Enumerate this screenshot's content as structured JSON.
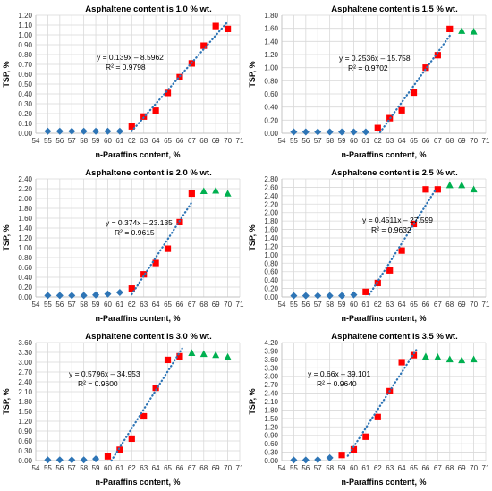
{
  "colors": {
    "group1": "#2e75b6",
    "group2": "#ff0000",
    "group3": "#00b050",
    "trendline": "#2e75b6",
    "grid": "#d9d9d9"
  },
  "chart_data": [
    {
      "type": "scatter",
      "title": "Asphaltene content is 1.0 % wt.",
      "xlabel": "n-Paraffins content, %",
      "ylabel": "TSP, %",
      "xlim": [
        54,
        71
      ],
      "ylim": [
        0,
        1.2
      ],
      "xticks": [
        54,
        55,
        56,
        57,
        58,
        59,
        60,
        61,
        62,
        63,
        64,
        65,
        66,
        67,
        68,
        69,
        70,
        71
      ],
      "yticks": [
        "0.00",
        "0.10",
        "0.20",
        "0.30",
        "0.40",
        "0.50",
        "0.60",
        "0.70",
        "0.80",
        "0.90",
        "1.00",
        "1.10",
        "1.20"
      ],
      "grid": true,
      "legend": "none",
      "series": [
        {
          "marker": "diamond",
          "color": "#2e75b6",
          "x": [
            55,
            56,
            57,
            58,
            59,
            60,
            61
          ],
          "y": [
            0.02,
            0.02,
            0.02,
            0.02,
            0.02,
            0.02,
            0.02
          ]
        },
        {
          "marker": "square",
          "color": "#ff0000",
          "x": [
            62,
            63,
            64,
            65,
            66,
            67,
            68,
            69,
            70
          ],
          "y": [
            0.07,
            0.17,
            0.23,
            0.41,
            0.57,
            0.71,
            0.89,
            1.09,
            1.06
          ]
        }
      ],
      "trendline": {
        "slope": 0.139,
        "intercept": -8.5962,
        "x": [
          62,
          70
        ],
        "equation": "y = 0.139x – 8.5962",
        "r2": "R² = 0.9798"
      }
    },
    {
      "type": "scatter",
      "title": "Asphaltene content is 1.5 % wt.",
      "xlabel": "n-Paraffins content, %",
      "ylabel": "TSP, %",
      "xlim": [
        54,
        71
      ],
      "ylim": [
        0,
        1.8
      ],
      "xticks": [
        54,
        55,
        56,
        57,
        58,
        59,
        60,
        61,
        62,
        63,
        64,
        65,
        66,
        67,
        68,
        69,
        70,
        71
      ],
      "yticks": [
        "0.00",
        "0.20",
        "0.40",
        "0.60",
        "0.80",
        "1.00",
        "1.20",
        "1.40",
        "1.60",
        "1.80"
      ],
      "grid": true,
      "legend": "none",
      "series": [
        {
          "marker": "diamond",
          "color": "#2e75b6",
          "x": [
            55,
            56,
            57,
            58,
            59,
            60,
            61
          ],
          "y": [
            0.02,
            0.02,
            0.02,
            0.02,
            0.02,
            0.02,
            0.02
          ]
        },
        {
          "marker": "square",
          "color": "#ff0000",
          "x": [
            62,
            63,
            64,
            65,
            66,
            67,
            68
          ],
          "y": [
            0.08,
            0.23,
            0.35,
            0.62,
            1.0,
            1.19,
            1.59
          ]
        },
        {
          "marker": "triangle",
          "color": "#00b050",
          "x": [
            69,
            70
          ],
          "y": [
            1.56,
            1.55
          ]
        }
      ],
      "trendline": {
        "slope": 0.2536,
        "intercept": -15.758,
        "x": [
          62.2,
          68
        ],
        "equation": "y = 0.2536x – 15.758",
        "r2": "R² = 0.9702"
      }
    },
    {
      "type": "scatter",
      "title": "Asphaltene content is 2.0 % wt.",
      "xlabel": "n-Paraffins content, %",
      "ylabel": "TSP, %",
      "xlim": [
        54,
        71
      ],
      "ylim": [
        0,
        2.4
      ],
      "xticks": [
        54,
        55,
        56,
        57,
        58,
        59,
        60,
        61,
        62,
        63,
        64,
        65,
        66,
        67,
        68,
        69,
        70,
        71
      ],
      "yticks": [
        "0.00",
        "0.20",
        "0.40",
        "0.60",
        "0.80",
        "1.00",
        "1.20",
        "1.40",
        "1.60",
        "1.80",
        "2.00",
        "2.20",
        "2.40"
      ],
      "grid": true,
      "legend": "none",
      "series": [
        {
          "marker": "diamond",
          "color": "#2e75b6",
          "x": [
            55,
            56,
            57,
            58,
            59,
            60,
            61
          ],
          "y": [
            0.03,
            0.03,
            0.03,
            0.03,
            0.04,
            0.06,
            0.09
          ]
        },
        {
          "marker": "square",
          "color": "#ff0000",
          "x": [
            62,
            63,
            64,
            65,
            66,
            67
          ],
          "y": [
            0.17,
            0.46,
            0.69,
            0.98,
            1.52,
            2.1
          ]
        },
        {
          "marker": "triangle",
          "color": "#00b050",
          "x": [
            68,
            69,
            70
          ],
          "y": [
            2.15,
            2.16,
            2.1
          ]
        }
      ],
      "trendline": {
        "slope": 0.374,
        "intercept": -23.135,
        "x": [
          62,
          67
        ],
        "equation": "y = 0.374x – 23.135",
        "r2": "R² = 0.9615"
      }
    },
    {
      "type": "scatter",
      "title": "Asphaltene content is 2.5 % wt.",
      "xlabel": "n-Paraffins content, %",
      "ylabel": "TSP, %",
      "xlim": [
        54,
        71
      ],
      "ylim": [
        0,
        2.8
      ],
      "xticks": [
        54,
        55,
        56,
        57,
        58,
        59,
        60,
        61,
        62,
        63,
        64,
        65,
        66,
        67,
        68,
        69,
        70,
        71
      ],
      "yticks": [
        "0.00",
        "0.20",
        "0.40",
        "0.60",
        "0.80",
        "1.00",
        "1.20",
        "1.40",
        "1.60",
        "1.80",
        "2.00",
        "2.20",
        "2.40",
        "2.60",
        "2.80"
      ],
      "grid": true,
      "legend": "none",
      "series": [
        {
          "marker": "diamond",
          "color": "#2e75b6",
          "x": [
            55,
            56,
            57,
            58,
            59,
            60
          ],
          "y": [
            0.03,
            0.03,
            0.03,
            0.03,
            0.03,
            0.05
          ]
        },
        {
          "marker": "square",
          "color": "#ff0000",
          "x": [
            61,
            62,
            63,
            64,
            65,
            66,
            67
          ],
          "y": [
            0.12,
            0.33,
            0.63,
            1.1,
            1.73,
            2.55,
            2.55
          ]
        },
        {
          "marker": "triangle",
          "color": "#00b050",
          "x": [
            68,
            69,
            70
          ],
          "y": [
            2.65,
            2.65,
            2.55
          ]
        }
      ],
      "trendline": {
        "slope": 0.4511,
        "intercept": -27.599,
        "x": [
          61.3,
          66.8
        ],
        "equation": "y = 0.4511x – 27.599",
        "r2": "R² = 0.9632"
      }
    },
    {
      "type": "scatter",
      "title": "Asphaltene content is 3.0 % wt.",
      "xlabel": "n-Paraffins content, %",
      "ylabel": "TSP, %",
      "xlim": [
        54,
        71
      ],
      "ylim": [
        0,
        3.6
      ],
      "xticks": [
        54,
        55,
        56,
        57,
        58,
        59,
        60,
        61,
        62,
        63,
        64,
        65,
        66,
        67,
        68,
        69,
        70,
        71
      ],
      "yticks": [
        "0.00",
        "0.30",
        "0.60",
        "0.90",
        "1.20",
        "1.50",
        "1.80",
        "2.10",
        "2.40",
        "2.70",
        "3.00",
        "3.30",
        "3.60"
      ],
      "grid": true,
      "legend": "none",
      "series": [
        {
          "marker": "diamond",
          "color": "#2e75b6",
          "x": [
            55,
            56,
            57,
            58,
            59
          ],
          "y": [
            0.02,
            0.02,
            0.02,
            0.02,
            0.05
          ]
        },
        {
          "marker": "square",
          "color": "#ff0000",
          "x": [
            60,
            61,
            62,
            63,
            64,
            65,
            66
          ],
          "y": [
            0.13,
            0.33,
            0.67,
            1.35,
            2.22,
            3.07,
            3.18
          ]
        },
        {
          "marker": "triangle",
          "color": "#00b050",
          "x": [
            67,
            68,
            69,
            70
          ],
          "y": [
            3.28,
            3.25,
            3.22,
            3.16
          ]
        }
      ],
      "trendline": {
        "slope": 0.5796,
        "intercept": -34.953,
        "x": [
          60.3,
          66.2
        ],
        "equation": "y = 0.5796x – 34.953",
        "r2": "R² = 0.9600"
      }
    },
    {
      "type": "scatter",
      "title": "Asphaltene content is 3.5 % wt.",
      "xlabel": "n-Paraffins content, %",
      "ylabel": "TSP, %",
      "xlim": [
        54,
        71
      ],
      "ylim": [
        0,
        4.2
      ],
      "xticks": [
        54,
        55,
        56,
        57,
        58,
        59,
        60,
        61,
        62,
        63,
        64,
        65,
        66,
        67,
        68,
        69,
        70,
        71
      ],
      "yticks": [
        "0.00",
        "0.30",
        "0.60",
        "0.90",
        "1.20",
        "1.50",
        "1.80",
        "2.10",
        "2.40",
        "2.70",
        "3.00",
        "3.30",
        "3.60",
        "3.90",
        "4.20"
      ],
      "grid": true,
      "legend": "none",
      "series": [
        {
          "marker": "diamond",
          "color": "#2e75b6",
          "x": [
            55,
            56,
            57,
            58
          ],
          "y": [
            0.02,
            0.02,
            0.03,
            0.1
          ]
        },
        {
          "marker": "square",
          "color": "#ff0000",
          "x": [
            59,
            60,
            61,
            62,
            63,
            64,
            65
          ],
          "y": [
            0.2,
            0.4,
            0.85,
            1.55,
            2.47,
            3.5,
            3.75
          ]
        },
        {
          "marker": "triangle",
          "color": "#00b050",
          "x": [
            66,
            67,
            68,
            69,
            70
          ],
          "y": [
            3.7,
            3.68,
            3.6,
            3.57,
            3.6
          ]
        }
      ],
      "trendline": {
        "slope": 0.66,
        "intercept": -39.101,
        "x": [
          59.5,
          65.2
        ],
        "equation": "y = 0.66x – 39.101",
        "r2": "R² = 0.9640"
      }
    }
  ]
}
